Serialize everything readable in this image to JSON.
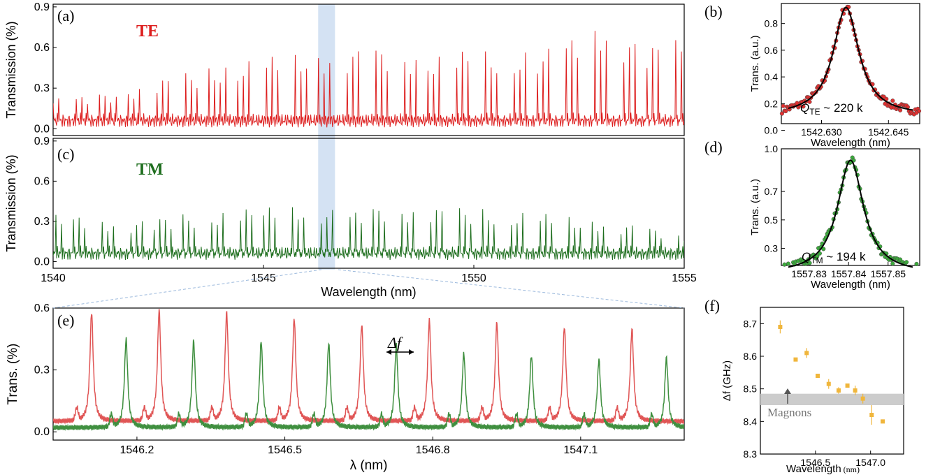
{
  "colors": {
    "te": "#dd1e1e",
    "tm": "#1e6e1e",
    "te_e": "#e05555",
    "tm_e": "#3f8f3f",
    "fit": "#000000",
    "points_f": "#f0b63c",
    "band": "#cccccc",
    "highlight": "#c5d8ef"
  },
  "labels": {
    "a": "(a)",
    "b": "(b)",
    "c": "(c)",
    "d": "(d)",
    "e": "(e)",
    "f": "(f)",
    "te": "TE",
    "tm": "TM",
    "delta_f_symbol": "Δf",
    "q_te_sym": "Q",
    "q_te_sub": "TE",
    "q_te_rest": " ~ 220 k",
    "q_tm_sym": "Q",
    "q_tm_sub": "TM",
    "q_tm_rest": " ~ 194 k",
    "magnons": "Magnons",
    "wl_text": "Wavelength",
    "wl_unit": " (nm)"
  },
  "chart_data": [
    {
      "id": "a",
      "type": "line",
      "ylabel": "Transmission (%)",
      "xlim": [
        1540,
        1555
      ],
      "ylim": [
        -0.05,
        0.92
      ],
      "yticks": [
        "0.0",
        "0.3",
        "0.6",
        "0.9"
      ],
      "series": [
        {
          "name": "TE",
          "fsr_nm": 0.137,
          "baseline": 0.04,
          "envelope_x": [
            1540,
            1541,
            1542,
            1543,
            1544,
            1545,
            1546,
            1547,
            1548,
            1549,
            1550,
            1551,
            1552,
            1553,
            1554,
            1555
          ],
          "envelope_y": [
            0.22,
            0.25,
            0.32,
            0.4,
            0.47,
            0.52,
            0.58,
            0.58,
            0.6,
            0.55,
            0.58,
            0.56,
            0.6,
            0.82,
            0.6,
            0.67
          ]
        }
      ]
    },
    {
      "id": "c",
      "type": "line",
      "ylabel": "Transmission (%)",
      "xlabel": "Wavelength (nm)",
      "xlim": [
        1540,
        1555
      ],
      "ylim": [
        -0.05,
        0.92
      ],
      "xticks": [
        "1540",
        "1545",
        "1550",
        "1555"
      ],
      "yticks": [
        "0.0",
        "0.3",
        "0.6",
        "0.9"
      ],
      "series": [
        {
          "name": "TM",
          "fsr_nm": 0.137,
          "baseline": 0.04,
          "envelope_x": [
            1540,
            1541,
            1542,
            1543,
            1544,
            1545,
            1546,
            1547,
            1548,
            1549,
            1550,
            1551,
            1552,
            1553,
            1554,
            1555
          ],
          "envelope_y": [
            0.35,
            0.33,
            0.3,
            0.35,
            0.38,
            0.4,
            0.43,
            0.36,
            0.43,
            0.4,
            0.4,
            0.37,
            0.35,
            0.32,
            0.26,
            0.22
          ]
        }
      ],
      "highlight_x": [
        1546.3,
        1546.7
      ]
    },
    {
      "id": "b",
      "type": "scatter",
      "ylabel": "Trans. (a.u.)",
      "xlabel": "Wavelength (nm)",
      "xlim": [
        1542.621,
        1542.652
      ],
      "ylim": [
        0.05,
        0.95
      ],
      "xticks": [
        "1542.630",
        "1542.645"
      ],
      "yticks": [
        "0.0",
        "0.2",
        "0.4",
        "0.6",
        "0.8"
      ],
      "center": 1542.6355,
      "fwhm": 0.007,
      "peak": 0.92,
      "floor": 0.11
    },
    {
      "id": "d",
      "type": "scatter",
      "ylabel": "Trans. (a.u.)",
      "xlabel": "Wavelength (nm)",
      "xlim": [
        1557.823,
        1557.858
      ],
      "ylim": [
        0.18,
        1.0
      ],
      "xticks": [
        "1557.83",
        "1557.84",
        "1557.85"
      ],
      "yticks": [
        "0.3",
        "0.5",
        "0.7",
        "1.0"
      ],
      "center": 1557.8405,
      "fwhm": 0.008,
      "peak": 0.92,
      "floor": 0.12
    },
    {
      "id": "e",
      "type": "line",
      "ylabel": "Trans. (%)",
      "xlabel": "λ (nm)",
      "xlim": [
        1546.03,
        1547.31
      ],
      "ylim": [
        -0.04,
        0.6
      ],
      "xticks": [
        "1546.2",
        "1546.5",
        "1546.8",
        "1547.1"
      ],
      "yticks": [
        "0.0",
        "0.3",
        "0.6"
      ],
      "series": [
        {
          "name": "TE",
          "fwhm": 0.008,
          "baseline": 0.05,
          "peaks_x": [
            1546.108,
            1546.245,
            1546.382,
            1546.519,
            1546.656,
            1546.793,
            1546.93,
            1547.067,
            1547.204
          ],
          "peaks_y": [
            0.58,
            0.59,
            0.58,
            0.55,
            0.52,
            0.54,
            0.53,
            0.51,
            0.5
          ]
        },
        {
          "name": "TM",
          "fwhm": 0.008,
          "baseline": 0.02,
          "peaks_x": [
            1546.178,
            1546.315,
            1546.452,
            1546.589,
            1546.726,
            1546.863,
            1547.0,
            1547.137,
            1547.274
          ],
          "peaks_y": [
            0.45,
            0.44,
            0.44,
            0.43,
            0.42,
            0.38,
            0.37,
            0.35,
            0.36
          ]
        }
      ]
    },
    {
      "id": "f",
      "type": "scatter",
      "ylabel": "Δf (GHz)",
      "xlabel": "Wavelength (nm)",
      "xlim": [
        1546.0,
        1547.3
      ],
      "ylim": [
        8.3,
        8.75
      ],
      "xticks": [
        "1546.5",
        "1547.0"
      ],
      "yticks": [
        "8.3",
        "8.4",
        "8.5",
        "8.6",
        "8.7"
      ],
      "x": [
        1546.18,
        1546.32,
        1546.42,
        1546.52,
        1546.62,
        1546.71,
        1546.79,
        1546.86,
        1546.93,
        1547.01,
        1547.11
      ],
      "y": [
        8.69,
        8.59,
        8.61,
        8.54,
        8.515,
        8.495,
        8.51,
        8.495,
        8.47,
        8.42,
        8.4
      ],
      "err": [
        0.02,
        0.0,
        0.015,
        0.0,
        0.015,
        0.01,
        0.0,
        0.015,
        0.015,
        0.03,
        0.0
      ],
      "band_y": [
        8.45,
        8.485
      ]
    }
  ]
}
